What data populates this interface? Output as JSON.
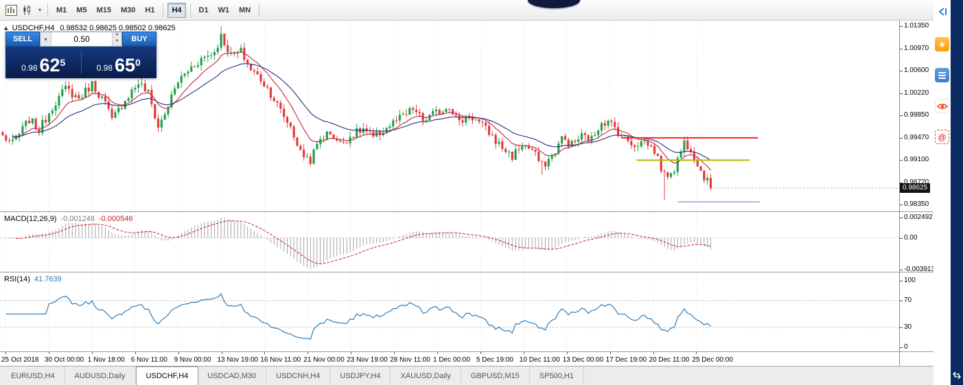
{
  "toolbar": {
    "timeframes": [
      {
        "label": "M1"
      },
      {
        "label": "M5"
      },
      {
        "label": "M15"
      },
      {
        "label": "M30"
      },
      {
        "label": "H1"
      },
      {
        "label": "H4",
        "active": true
      },
      {
        "label": "D1"
      },
      {
        "label": "W1"
      },
      {
        "label": "MN"
      }
    ]
  },
  "chart": {
    "symbol_period": "USDCHF,H4",
    "ohlc_text": "0.98532 0.98625 0.98502 0.98625",
    "trade_panel": {
      "sell_label": "SELL",
      "buy_label": "BUY",
      "volume": "0.50",
      "sell_price": {
        "prefix": "0.98",
        "big": "62",
        "sup": "5"
      },
      "buy_price": {
        "prefix": "0.98",
        "big": "65",
        "sup": "0"
      }
    },
    "price_scale": {
      "labels": [
        {
          "text": "1.01350",
          "value": 1.0135
        },
        {
          "text": "1.00970",
          "value": 1.0097
        },
        {
          "text": "1.00600",
          "value": 1.006
        },
        {
          "text": "1.00220",
          "value": 1.0022
        },
        {
          "text": "0.99850",
          "value": 0.9985
        },
        {
          "text": "0.99470",
          "value": 0.9947
        },
        {
          "text": "0.99100",
          "value": 0.991
        },
        {
          "text": "0.98720",
          "value": 0.9872
        },
        {
          "text": "0.98350",
          "value": 0.9835
        }
      ],
      "current": {
        "text": "0.98625",
        "value": 0.98625
      }
    }
  },
  "macd": {
    "label": "MACD(12,26,9)",
    "value_hist": "-0.001248",
    "value_signal": "-0.000546",
    "scale": [
      {
        "text": "0.002492",
        "value": 0.002492
      },
      {
        "text": "0.00",
        "value": 0
      },
      {
        "text": "-0.003913",
        "value": -0.003913
      }
    ]
  },
  "rsi": {
    "label": "RSI(14)",
    "value": "41.7639",
    "scale": [
      {
        "text": "100",
        "value": 100
      },
      {
        "text": "70",
        "value": 70
      },
      {
        "text": "30",
        "value": 30
      },
      {
        "text": "0",
        "value": 0
      }
    ],
    "levels": [
      70,
      30
    ]
  },
  "time_axis": {
    "labels": [
      "25 Oct 2018",
      "30 Oct 00:00",
      "1 Nov 18:00",
      "6 Nov 11:00",
      "9 Nov 00:00",
      "13 Nov 19:00",
      "16 Nov 11:00",
      "21 Nov 00:00",
      "23 Nov 19:00",
      "28 Nov 11:00",
      "1 Dec 00:00",
      "5 Dec 19:00",
      "10 Dec 11:00",
      "13 Dec 00:00",
      "17 Dec 19:00",
      "20 Dec 11:00",
      "25 Dec 00:00"
    ]
  },
  "tabs": [
    {
      "label": "EURUSD,H4"
    },
    {
      "label": "AUDUSD,Daily"
    },
    {
      "label": "USDCHF,H4",
      "active": true
    },
    {
      "label": "USDCAD,M30"
    },
    {
      "label": "USDCNH,H4"
    },
    {
      "label": "USDJPY,H4"
    },
    {
      "label": "XAUUSD,Daily"
    },
    {
      "label": "GBPUSD,M15"
    },
    {
      "label": "SP500,H1"
    }
  ],
  "colors": {
    "up": "#21a14c",
    "down": "#e23b3b",
    "ma_fast": "#c2243e",
    "ma_slow": "#232f7e",
    "macd_hist": "#a3a3a3",
    "macd_signal": "#cf2020",
    "rsi_line": "#2b7bb9",
    "accent_blue": "#1f63c4",
    "panel_navy": "#0e2a66"
  },
  "chart_data": {
    "type": "candlestick",
    "symbol": "USDCHF",
    "timeframe": "H4",
    "ohlc_current": {
      "open": 0.98532,
      "high": 0.98625,
      "low": 0.98502,
      "close": 0.98625
    },
    "ylim": [
      0.9835,
      1.0135
    ],
    "candle_count": 215,
    "price_keypoints": [
      [
        0,
        0.995
      ],
      [
        3,
        0.9937
      ],
      [
        8,
        0.9978
      ],
      [
        11,
        0.996
      ],
      [
        15,
        1.0
      ],
      [
        19,
        1.003
      ],
      [
        23,
        1.0013
      ],
      [
        27,
        1.0038
      ],
      [
        31,
        1.0005
      ],
      [
        33,
        0.9976
      ],
      [
        37,
        1.0012
      ],
      [
        41,
        1.004
      ],
      [
        44,
        1.0022
      ],
      [
        47,
        0.9965
      ],
      [
        49,
        0.9988
      ],
      [
        53,
        1.0042
      ],
      [
        57,
        1.0066
      ],
      [
        60,
        1.008
      ],
      [
        64,
        1.0092
      ],
      [
        66,
        1.0118
      ],
      [
        69,
        1.0086
      ],
      [
        72,
        1.0092
      ],
      [
        75,
        1.0062
      ],
      [
        78,
        1.0046
      ],
      [
        81,
        1.0022
      ],
      [
        84,
        0.9992
      ],
      [
        87,
        0.9966
      ],
      [
        90,
        0.9922
      ],
      [
        93,
        0.991
      ],
      [
        96,
        0.9946
      ],
      [
        99,
        0.9956
      ],
      [
        102,
        0.9936
      ],
      [
        105,
        0.995
      ],
      [
        109,
        0.9962
      ],
      [
        112,
        0.9946
      ],
      [
        115,
        0.996
      ],
      [
        119,
        0.9976
      ],
      [
        122,
        0.9986
      ],
      [
        124,
        0.9996
      ],
      [
        127,
        0.9976
      ],
      [
        130,
        0.9986
      ],
      [
        133,
        0.9994
      ],
      [
        135,
        1.0002
      ],
      [
        138,
        0.9972
      ],
      [
        141,
        0.9986
      ],
      [
        144,
        0.9972
      ],
      [
        147,
        0.9956
      ],
      [
        150,
        0.9936
      ],
      [
        154,
        0.9916
      ],
      [
        157,
        0.9936
      ],
      [
        160,
        0.9926
      ],
      [
        163,
        0.99
      ],
      [
        166,
        0.9916
      ],
      [
        169,
        0.9946
      ],
      [
        172,
        0.9936
      ],
      [
        175,
        0.995
      ],
      [
        178,
        0.9944
      ],
      [
        181,
        0.9976
      ],
      [
        184,
        0.997
      ],
      [
        188,
        0.9946
      ],
      [
        191,
        0.9936
      ],
      [
        194,
        0.9942
      ],
      [
        197,
        0.9926
      ],
      [
        200,
        0.9882
      ],
      [
        203,
        0.9896
      ],
      [
        206,
        0.994
      ],
      [
        208,
        0.993
      ],
      [
        211,
        0.9892
      ],
      [
        214,
        0.98625
      ]
    ],
    "forced_wicks": [
      {
        "index": 66,
        "high": 1.0135
      },
      {
        "index": 163,
        "low": 0.9885
      },
      {
        "index": 200,
        "low": 0.9843
      }
    ],
    "hlines": [
      {
        "price": 0.9947,
        "x1": 0.691,
        "x2": 0.843,
        "color": "#ff2020",
        "width": 2
      },
      {
        "price": 0.99095,
        "x1": 0.708,
        "x2": 0.834,
        "color": "#b5b800",
        "width": 2
      },
      {
        "price": 0.98395,
        "x1": 0.754,
        "x2": 0.845,
        "color": "#4f74d8",
        "width": 1
      }
    ],
    "moving_averages": [
      {
        "period": 10,
        "color_key": "ma_fast"
      },
      {
        "period": 25,
        "color_key": "ma_slow"
      }
    ],
    "macd": {
      "fast": 12,
      "slow": 26,
      "signal": 9
    },
    "rsi_period": 14
  }
}
